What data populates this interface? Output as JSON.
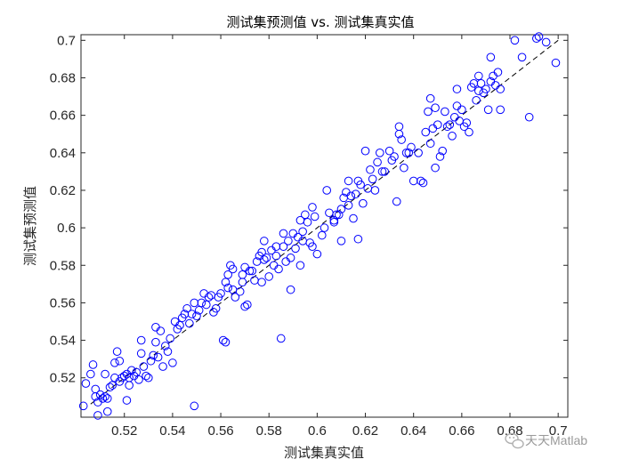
{
  "chart_data": {
    "type": "scatter",
    "title": "测试集预测值 vs. 测试集真实值",
    "xlabel": "测试集真实值",
    "ylabel": "测试集预测值",
    "xlim": [
      0.502,
      0.704
    ],
    "ylim": [
      0.499,
      0.703
    ],
    "xticks": [
      0.52,
      0.54,
      0.56,
      0.58,
      0.6,
      0.62,
      0.64,
      0.66,
      0.68,
      0.7
    ],
    "yticks": [
      0.52,
      0.54,
      0.56,
      0.58,
      0.6,
      0.62,
      0.64,
      0.66,
      0.68,
      0.7
    ],
    "xtick_labels": [
      "0.52",
      "0.54",
      "0.56",
      "0.58",
      "0.6",
      "0.62",
      "0.64",
      "0.66",
      "0.68",
      "0.7"
    ],
    "ytick_labels": [
      "0.52",
      "0.54",
      "0.56",
      "0.58",
      "0.6",
      "0.62",
      "0.64",
      "0.66",
      "0.68",
      "0.7"
    ],
    "grid": false,
    "marker_color": "#0000ff",
    "reference_line": {
      "from": [
        0.506,
        0.506
      ],
      "to": [
        0.7,
        0.7
      ],
      "style": "dashed",
      "color": "#000000"
    },
    "points": [
      [
        0.503,
        0.505
      ],
      [
        0.504,
        0.517
      ],
      [
        0.506,
        0.522
      ],
      [
        0.507,
        0.527
      ],
      [
        0.508,
        0.51
      ],
      [
        0.508,
        0.514
      ],
      [
        0.509,
        0.5
      ],
      [
        0.509,
        0.507
      ],
      [
        0.51,
        0.511
      ],
      [
        0.511,
        0.509
      ],
      [
        0.512,
        0.51
      ],
      [
        0.512,
        0.522
      ],
      [
        0.513,
        0.502
      ],
      [
        0.513,
        0.509
      ],
      [
        0.514,
        0.515
      ],
      [
        0.515,
        0.516
      ],
      [
        0.516,
        0.52
      ],
      [
        0.516,
        0.528
      ],
      [
        0.517,
        0.534
      ],
      [
        0.518,
        0.529
      ],
      [
        0.518,
        0.518
      ],
      [
        0.519,
        0.52
      ],
      [
        0.52,
        0.521
      ],
      [
        0.521,
        0.508
      ],
      [
        0.521,
        0.522
      ],
      [
        0.522,
        0.52
      ],
      [
        0.522,
        0.516
      ],
      [
        0.523,
        0.524
      ],
      [
        0.524,
        0.521
      ],
      [
        0.525,
        0.523
      ],
      [
        0.526,
        0.519
      ],
      [
        0.527,
        0.533
      ],
      [
        0.527,
        0.54
      ],
      [
        0.528,
        0.526
      ],
      [
        0.529,
        0.521
      ],
      [
        0.53,
        0.52
      ],
      [
        0.531,
        0.529
      ],
      [
        0.532,
        0.532
      ],
      [
        0.533,
        0.547
      ],
      [
        0.533,
        0.539
      ],
      [
        0.534,
        0.531
      ],
      [
        0.535,
        0.545
      ],
      [
        0.536,
        0.526
      ],
      [
        0.537,
        0.537
      ],
      [
        0.538,
        0.534
      ],
      [
        0.539,
        0.541
      ],
      [
        0.54,
        0.528
      ],
      [
        0.541,
        0.55
      ],
      [
        0.542,
        0.546
      ],
      [
        0.543,
        0.548
      ],
      [
        0.544,
        0.552
      ],
      [
        0.545,
        0.554
      ],
      [
        0.546,
        0.557
      ],
      [
        0.547,
        0.549
      ],
      [
        0.548,
        0.554
      ],
      [
        0.549,
        0.56
      ],
      [
        0.549,
        0.505
      ],
      [
        0.55,
        0.553
      ],
      [
        0.551,
        0.556
      ],
      [
        0.552,
        0.56
      ],
      [
        0.553,
        0.565
      ],
      [
        0.554,
        0.559
      ],
      [
        0.555,
        0.563
      ],
      [
        0.556,
        0.564
      ],
      [
        0.557,
        0.555
      ],
      [
        0.558,
        0.557
      ],
      [
        0.559,
        0.563
      ],
      [
        0.56,
        0.565
      ],
      [
        0.561,
        0.54
      ],
      [
        0.562,
        0.571
      ],
      [
        0.562,
        0.539
      ],
      [
        0.563,
        0.575
      ],
      [
        0.563,
        0.568
      ],
      [
        0.564,
        0.58
      ],
      [
        0.565,
        0.567
      ],
      [
        0.565,
        0.578
      ],
      [
        0.566,
        0.563
      ],
      [
        0.568,
        0.566
      ],
      [
        0.569,
        0.571
      ],
      [
        0.569,
        0.575
      ],
      [
        0.57,
        0.558
      ],
      [
        0.57,
        0.579
      ],
      [
        0.571,
        0.559
      ],
      [
        0.572,
        0.577
      ],
      [
        0.573,
        0.577
      ],
      [
        0.574,
        0.572
      ],
      [
        0.575,
        0.582
      ],
      [
        0.576,
        0.585
      ],
      [
        0.577,
        0.587
      ],
      [
        0.577,
        0.571
      ],
      [
        0.578,
        0.583
      ],
      [
        0.578,
        0.593
      ],
      [
        0.579,
        0.584
      ],
      [
        0.58,
        0.574
      ],
      [
        0.581,
        0.588
      ],
      [
        0.582,
        0.58
      ],
      [
        0.583,
        0.59
      ],
      [
        0.583,
        0.585
      ],
      [
        0.584,
        0.578
      ],
      [
        0.585,
        0.541
      ],
      [
        0.586,
        0.59
      ],
      [
        0.586,
        0.597
      ],
      [
        0.587,
        0.582
      ],
      [
        0.588,
        0.593
      ],
      [
        0.589,
        0.584
      ],
      [
        0.589,
        0.567
      ],
      [
        0.59,
        0.597
      ],
      [
        0.591,
        0.589
      ],
      [
        0.592,
        0.595
      ],
      [
        0.593,
        0.604
      ],
      [
        0.593,
        0.58
      ],
      [
        0.594,
        0.593
      ],
      [
        0.594,
        0.598
      ],
      [
        0.595,
        0.607
      ],
      [
        0.596,
        0.603
      ],
      [
        0.597,
        0.592
      ],
      [
        0.598,
        0.59
      ],
      [
        0.598,
        0.611
      ],
      [
        0.599,
        0.606
      ],
      [
        0.6,
        0.586
      ],
      [
        0.602,
        0.596
      ],
      [
        0.603,
        0.6
      ],
      [
        0.604,
        0.62
      ],
      [
        0.605,
        0.608
      ],
      [
        0.607,
        0.603
      ],
      [
        0.607,
        0.604
      ],
      [
        0.608,
        0.607
      ],
      [
        0.609,
        0.607
      ],
      [
        0.61,
        0.61
      ],
      [
        0.61,
        0.593
      ],
      [
        0.611,
        0.616
      ],
      [
        0.612,
        0.619
      ],
      [
        0.613,
        0.625
      ],
      [
        0.613,
        0.612
      ],
      [
        0.614,
        0.617
      ],
      [
        0.615,
        0.605
      ],
      [
        0.616,
        0.618
      ],
      [
        0.617,
        0.594
      ],
      [
        0.617,
        0.625
      ],
      [
        0.618,
        0.623
      ],
      [
        0.619,
        0.613
      ],
      [
        0.62,
        0.641
      ],
      [
        0.621,
        0.621
      ],
      [
        0.622,
        0.631
      ],
      [
        0.623,
        0.626
      ],
      [
        0.624,
        0.62
      ],
      [
        0.625,
        0.635
      ],
      [
        0.626,
        0.64
      ],
      [
        0.627,
        0.63
      ],
      [
        0.628,
        0.63
      ],
      [
        0.63,
        0.641
      ],
      [
        0.631,
        0.636
      ],
      [
        0.632,
        0.638
      ],
      [
        0.633,
        0.614
      ],
      [
        0.634,
        0.654
      ],
      [
        0.634,
        0.65
      ],
      [
        0.635,
        0.647
      ],
      [
        0.636,
        0.632
      ],
      [
        0.637,
        0.64
      ],
      [
        0.638,
        0.64
      ],
      [
        0.639,
        0.643
      ],
      [
        0.64,
        0.625
      ],
      [
        0.642,
        0.64
      ],
      [
        0.643,
        0.625
      ],
      [
        0.644,
        0.624
      ],
      [
        0.645,
        0.651
      ],
      [
        0.646,
        0.662
      ],
      [
        0.647,
        0.669
      ],
      [
        0.647,
        0.645
      ],
      [
        0.648,
        0.653
      ],
      [
        0.649,
        0.664
      ],
      [
        0.649,
        0.632
      ],
      [
        0.65,
        0.655
      ],
      [
        0.651,
        0.638
      ],
      [
        0.652,
        0.641
      ],
      [
        0.653,
        0.662
      ],
      [
        0.654,
        0.654
      ],
      [
        0.655,
        0.655
      ],
      [
        0.656,
        0.649
      ],
      [
        0.657,
        0.659
      ],
      [
        0.658,
        0.665
      ],
      [
        0.658,
        0.674
      ],
      [
        0.659,
        0.657
      ],
      [
        0.66,
        0.663
      ],
      [
        0.661,
        0.654
      ],
      [
        0.662,
        0.656
      ],
      [
        0.663,
        0.651
      ],
      [
        0.664,
        0.675
      ],
      [
        0.665,
        0.677
      ],
      [
        0.666,
        0.668
      ],
      [
        0.667,
        0.681
      ],
      [
        0.667,
        0.673
      ],
      [
        0.668,
        0.677
      ],
      [
        0.669,
        0.672
      ],
      [
        0.67,
        0.674
      ],
      [
        0.671,
        0.663
      ],
      [
        0.672,
        0.678
      ],
      [
        0.672,
        0.691
      ],
      [
        0.673,
        0.681
      ],
      [
        0.674,
        0.676
      ],
      [
        0.675,
        0.683
      ],
      [
        0.676,
        0.663
      ],
      [
        0.676,
        0.674
      ],
      [
        0.682,
        0.7
      ],
      [
        0.685,
        0.691
      ],
      [
        0.688,
        0.659
      ],
      [
        0.691,
        0.701
      ],
      [
        0.692,
        0.702
      ],
      [
        0.695,
        0.699
      ],
      [
        0.699,
        0.688
      ]
    ]
  },
  "watermark": {
    "text": "天天Matlab"
  }
}
